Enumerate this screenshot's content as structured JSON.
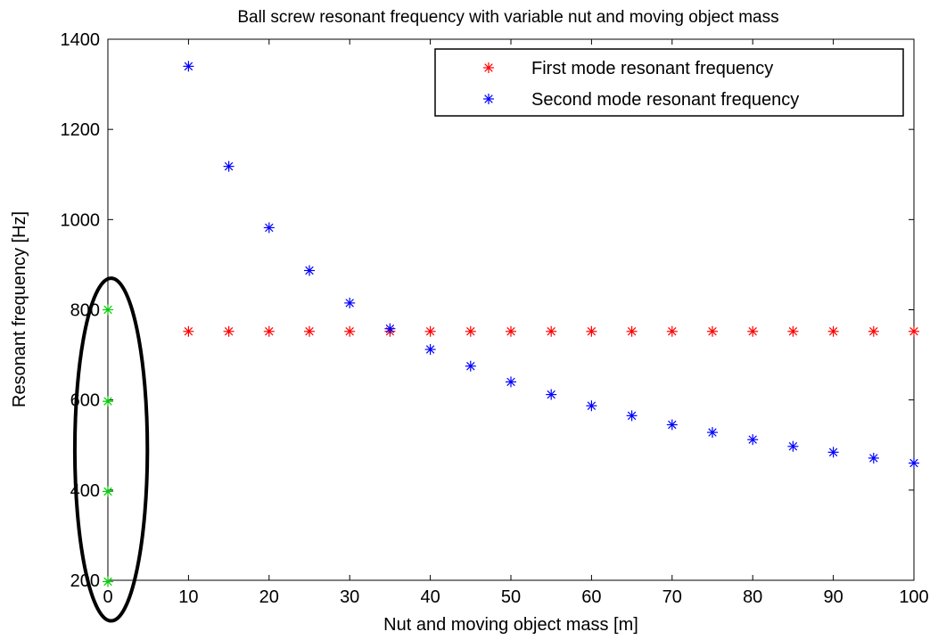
{
  "chart_data": {
    "type": "scatter",
    "title": "Ball screw resonant frequency with variable nut and moving object mass",
    "xlabel": "Nut and moving object mass [m]",
    "ylabel": "Resonant frequency [Hz]",
    "xlim": [
      0,
      100
    ],
    "ylim": [
      200,
      1400
    ],
    "xticks": [
      0,
      10,
      20,
      30,
      40,
      50,
      60,
      70,
      80,
      90,
      100
    ],
    "yticks": [
      200,
      400,
      600,
      800,
      1000,
      1200,
      1400
    ],
    "xtick_labels": [
      "0",
      "10",
      "20",
      "30",
      "40",
      "50",
      "60",
      "70",
      "80",
      "90",
      "100"
    ],
    "ytick_labels": [
      "200",
      "400",
      "600",
      "800",
      "1000",
      "1200",
      "1400"
    ],
    "grid": false,
    "legend_position": "top-right",
    "marker": "asterisk",
    "series": [
      {
        "name": "First mode resonant frequency",
        "color": "#ff0000",
        "in_legend": true,
        "x": [
          10,
          15,
          20,
          25,
          30,
          35,
          40,
          45,
          50,
          55,
          60,
          65,
          70,
          75,
          80,
          85,
          90,
          95,
          100
        ],
        "y": [
          752,
          752,
          752,
          752,
          752,
          752,
          752,
          752,
          752,
          752,
          752,
          752,
          752,
          752,
          752,
          752,
          752,
          752,
          752
        ]
      },
      {
        "name": "Second mode resonant frequency",
        "color": "#0000ff",
        "in_legend": true,
        "x": [
          10,
          15,
          20,
          25,
          30,
          35,
          40,
          45,
          50,
          55,
          60,
          65,
          70,
          75,
          80,
          85,
          90,
          95,
          100
        ],
        "y": [
          1340,
          1118,
          982,
          887,
          815,
          758,
          712,
          675,
          640,
          612,
          587,
          565,
          545,
          528,
          512,
          497,
          484,
          471,
          460
        ]
      },
      {
        "name": "",
        "color": "#00cc00",
        "in_legend": false,
        "x": [
          0,
          0,
          0,
          0
        ],
        "y": [
          800,
          597,
          397,
          197
        ]
      }
    ],
    "annotation": {
      "type": "ellipse",
      "color": "#000000",
      "center": [
        0.4,
        490
      ],
      "rx_data": 4.5,
      "ry_data": 380
    }
  }
}
